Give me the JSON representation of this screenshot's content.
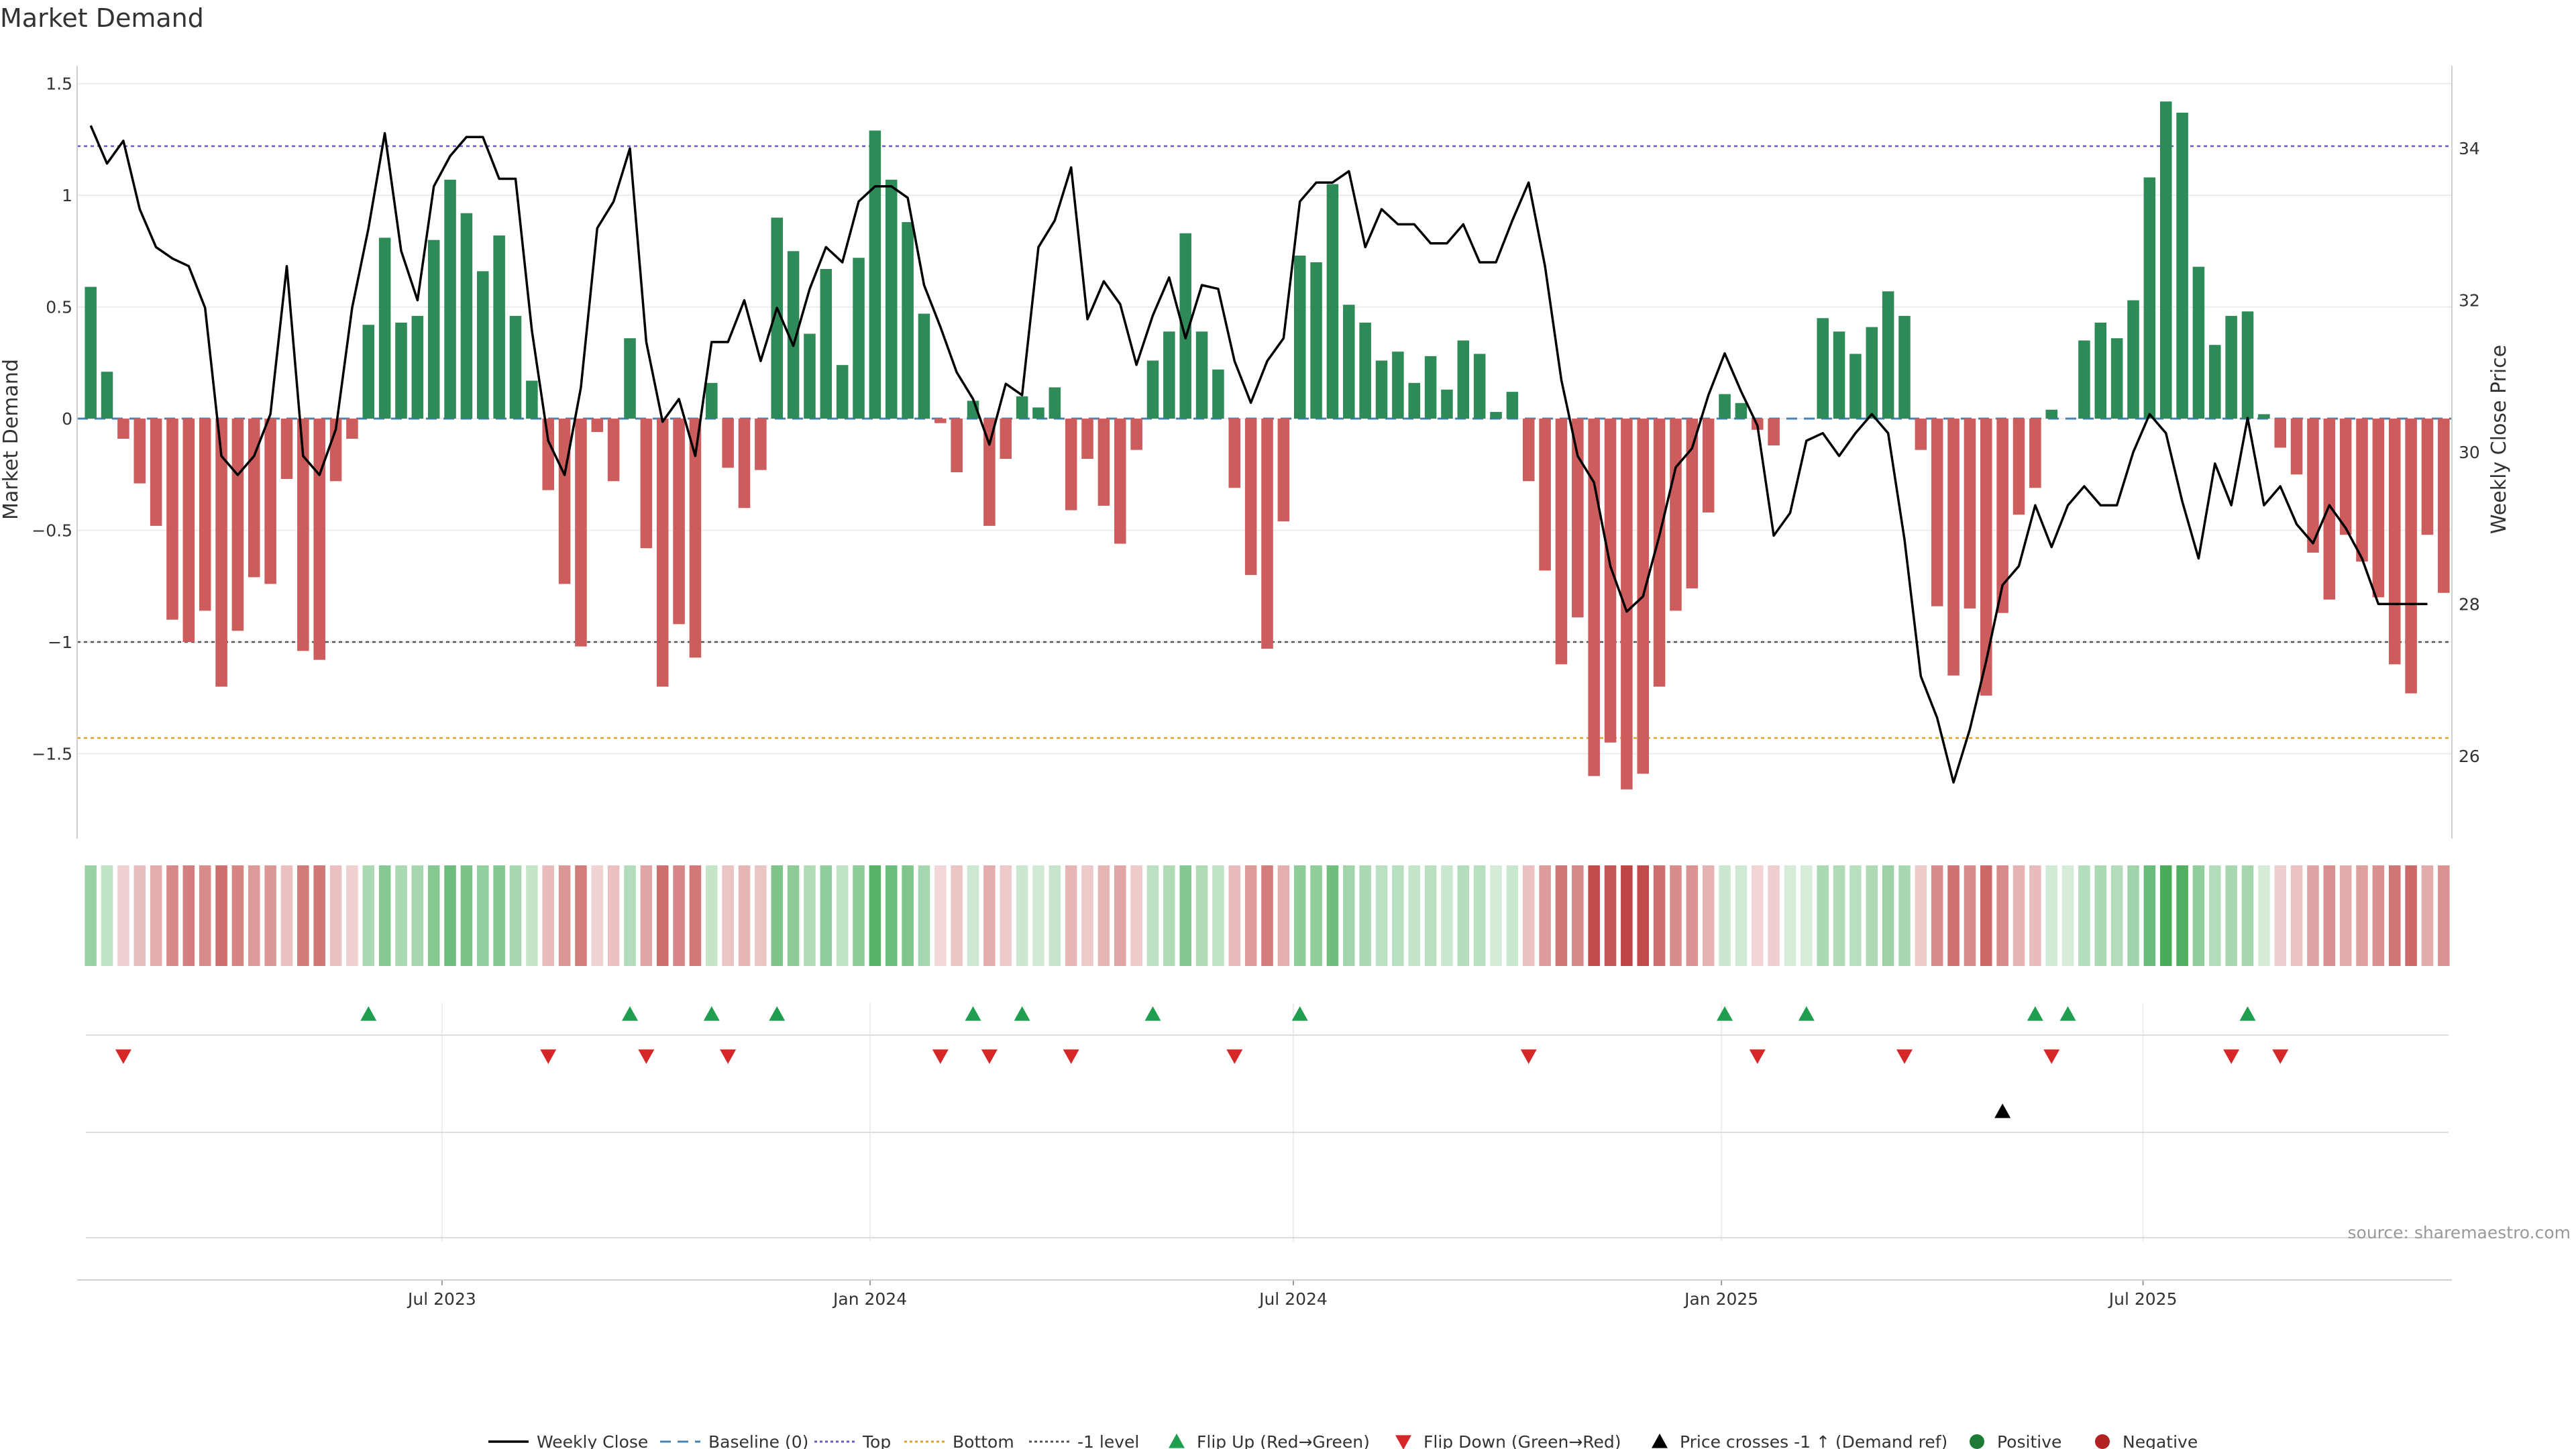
{
  "chart_data": {
    "type": "bar",
    "title": "Market Demand",
    "ylabel": "Market Demand",
    "y2label": "Weekly Close Price",
    "ylim": [
      -1.85,
      1.55
    ],
    "y2lim": [
      25.0,
      35.0
    ],
    "yticks": [
      1.5,
      1,
      0.5,
      0,
      -0.5,
      -1,
      -1.5
    ],
    "ytick_labels": [
      "1.5",
      "1",
      "0.5",
      "0",
      "−0.5",
      "−1",
      "−1.5"
    ],
    "y2ticks": [
      34,
      32,
      30,
      28,
      26
    ],
    "x_ticks": [
      {
        "label": "Jul 2023",
        "week": 21.5
      },
      {
        "label": "Jan 2024",
        "week": 47.7
      },
      {
        "label": "Jul 2024",
        "week": 73.6
      },
      {
        "label": "Jan 2025",
        "week": 99.8
      },
      {
        "label": "Jul 2025",
        "week": 125.6
      }
    ],
    "reference_lines": {
      "top": 1.22,
      "bottom": -1.43,
      "minus_one": -1.0,
      "baseline": 0
    },
    "series": [
      {
        "name": "Market Demand",
        "values": [
          0.59,
          0.21,
          -0.09,
          -0.29,
          -0.48,
          -0.9,
          -1.0,
          -0.86,
          -1.2,
          -0.95,
          -0.71,
          -0.74,
          -0.27,
          -1.04,
          -1.08,
          -0.28,
          -0.09,
          0.42,
          0.81,
          0.43,
          0.46,
          0.8,
          1.07,
          0.92,
          0.66,
          0.82,
          0.46,
          0.17,
          -0.32,
          -0.74,
          -1.02,
          -0.06,
          -0.28,
          0.36,
          -0.58,
          -1.2,
          -0.92,
          -1.07,
          0.16,
          -0.22,
          -0.4,
          -0.23,
          0.9,
          0.75,
          0.38,
          0.67,
          0.24,
          0.72,
          1.29,
          1.07,
          0.88,
          0.47,
          -0.02,
          -0.24,
          0.08,
          -0.48,
          -0.18,
          0.1,
          0.05,
          0.14,
          -0.41,
          -0.18,
          -0.39,
          -0.56,
          -0.14,
          0.26,
          0.39,
          0.83,
          0.39,
          0.22,
          -0.31,
          -0.7,
          -1.03,
          -0.46,
          0.73,
          0.7,
          1.05,
          0.51,
          0.43,
          0.26,
          0.3,
          0.16,
          0.28,
          0.13,
          0.35,
          0.29,
          0.03,
          0.12,
          -0.28,
          -0.68,
          -1.1,
          -0.89,
          -1.6,
          -1.45,
          -1.66,
          -1.59,
          -1.2,
          -0.86,
          -0.76,
          -0.42,
          0.11,
          0.07,
          -0.05,
          -0.12,
          0,
          0,
          0.45,
          0.39,
          0.29,
          0.41,
          0.57,
          0.46,
          -0.14,
          -0.84,
          -1.15,
          -0.85,
          -1.24,
          -0.87,
          -0.43,
          -0.31,
          0.04,
          0,
          0.35,
          0.43,
          0.36,
          0.53,
          1.08,
          1.42,
          1.37,
          0.68,
          0.33,
          0.46,
          0.48,
          0.02,
          -0.13,
          -0.25,
          -0.6,
          -0.81,
          -0.52,
          -0.64,
          -0.8,
          -1.1,
          -1.23,
          -0.52,
          -0.78
        ]
      },
      {
        "name": "Weekly Close",
        "values": [
          34.3,
          33.8,
          34.1,
          33.2,
          32.7,
          32.55,
          32.45,
          31.9,
          29.95,
          29.7,
          29.95,
          30.5,
          32.45,
          29.95,
          29.7,
          30.3,
          31.9,
          32.95,
          34.2,
          32.65,
          32.0,
          33.5,
          33.9,
          34.15,
          34.15,
          33.6,
          33.6,
          31.6,
          30.15,
          29.7,
          30.85,
          32.95,
          33.3,
          34.0,
          31.45,
          30.4,
          30.7,
          29.95,
          31.45,
          31.45,
          32.0,
          31.2,
          31.9,
          31.4,
          32.15,
          32.7,
          32.5,
          33.3,
          33.5,
          33.5,
          33.35,
          32.2,
          31.65,
          31.05,
          30.7,
          30.1,
          30.9,
          30.75,
          32.7,
          33.05,
          33.75,
          31.75,
          32.25,
          31.95,
          31.15,
          31.8,
          32.3,
          31.5,
          32.2,
          32.15,
          31.2,
          30.65,
          31.2,
          31.5,
          33.3,
          33.55,
          33.55,
          33.7,
          32.7,
          33.2,
          33.0,
          33.0,
          32.75,
          32.75,
          33.0,
          32.5,
          32.5,
          33.05,
          33.55,
          32.45,
          30.95,
          29.95,
          29.6,
          28.5,
          27.9,
          28.1,
          28.9,
          29.8,
          30.05,
          30.75,
          31.3,
          30.8,
          30.35,
          28.9,
          29.2,
          30.15,
          30.25,
          29.95,
          30.25,
          30.5,
          30.25,
          28.85,
          27.05,
          26.5,
          25.65,
          26.35,
          27.25,
          28.25,
          28.5,
          29.3,
          28.75,
          29.3,
          29.55,
          29.3,
          29.3,
          30.0,
          30.5,
          30.25,
          29.35,
          28.6,
          29.85,
          29.3,
          30.45,
          29.3,
          29.55,
          29.05,
          28.8,
          29.3,
          29.0,
          28.6,
          28.0,
          28.0,
          28.0,
          28.0
        ]
      }
    ],
    "flip_up_weeks": [
      17,
      33,
      38,
      42,
      54,
      57,
      65,
      74,
      100,
      105,
      119,
      121,
      132
    ],
    "flip_down_weeks": [
      2,
      28,
      34,
      39,
      52,
      55,
      60,
      70,
      88,
      102,
      111,
      120,
      131,
      134
    ],
    "price_cross_weeks": [
      117
    ],
    "legend": [
      "Weekly Close",
      "Baseline (0)",
      "Top",
      "Bottom",
      "-1 level",
      "Flip Up (Red→Green)",
      "Flip Down (Green→Red)",
      "Price crosses -1 ↑ (Demand ref)",
      "Positive",
      "Negative"
    ],
    "source": "source: sharemaestro.com"
  },
  "colors": {
    "positive": "#2e8b57",
    "negative": "#cd5c5c",
    "line": "#000000",
    "top": "#6a5acd",
    "bottom": "#daa520",
    "minus_one": "#555555",
    "baseline": "#4682b4",
    "flip_up": "#1f9e4f",
    "flip_down": "#d62728",
    "pos_dot": "#1f7a36",
    "neg_dot": "#b22222"
  }
}
